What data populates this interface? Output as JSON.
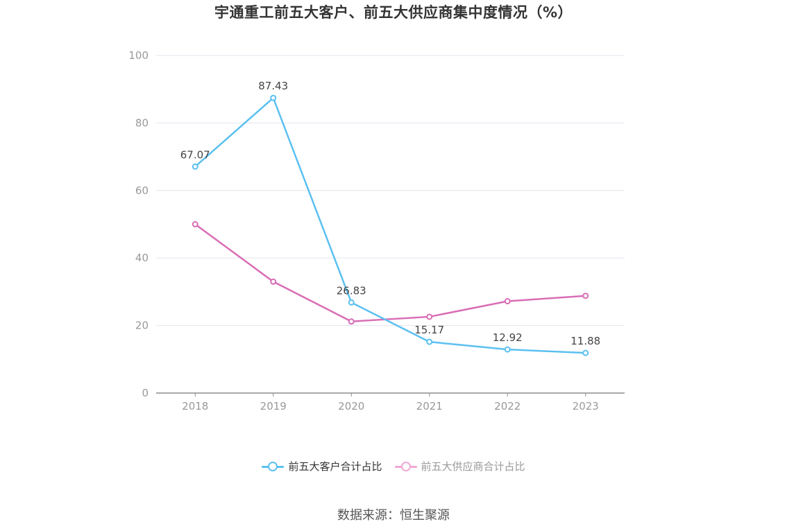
{
  "title": "宇通重工前五大客户、前五大供应商集中度情况（%）",
  "source": "数据来源：恒生聚源",
  "chart_data": {
    "type": "line",
    "title": "宇通重工前五大客户、前五大供应商集中度情况（%）",
    "xlabel": "",
    "ylabel": "",
    "categories": [
      "2018",
      "2019",
      "2020",
      "2021",
      "2022",
      "2023"
    ],
    "ylim": [
      0,
      100
    ],
    "yticks": [
      0,
      20,
      40,
      60,
      80,
      100
    ],
    "grid": true,
    "legend_position": "bottom",
    "series": [
      {
        "name": "前五大客户合计占比",
        "color": "#5bc0f0",
        "values": [
          67.07,
          87.43,
          26.83,
          15.17,
          12.92,
          11.88
        ],
        "labels": [
          "67.07",
          "87.43",
          "26.83",
          "15.17",
          "12.92",
          "11.88"
        ]
      },
      {
        "name": "前五大供应商合计占比",
        "color": "#d96db5",
        "legend_color": "#f0a8d4",
        "values": [
          50.0,
          33.0,
          21.2,
          22.6,
          27.2,
          28.8
        ]
      }
    ]
  }
}
